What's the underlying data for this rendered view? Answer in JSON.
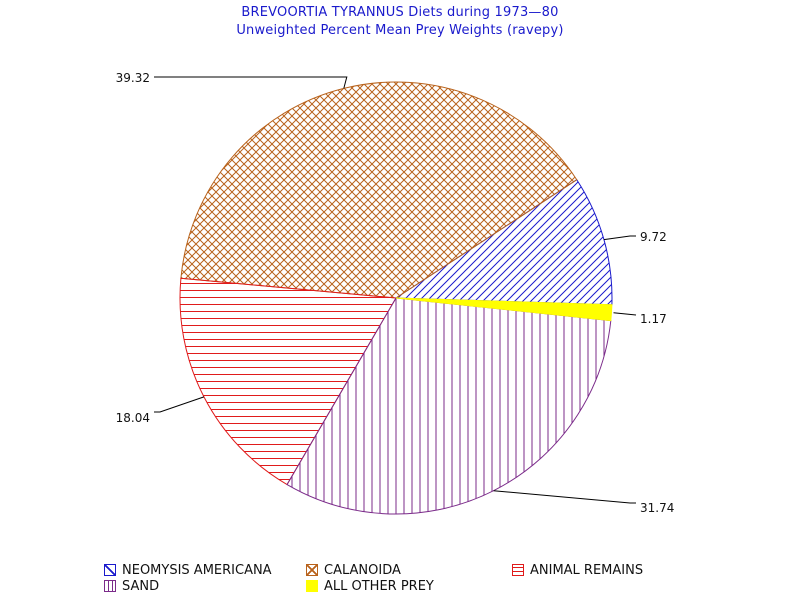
{
  "chart_data": {
    "type": "pie",
    "title": "BREVOORTIA TYRANNUS Diets during 1973—80",
    "subtitle": "Unweighted Percent Mean Prey Weights (ravepy)",
    "series": [
      {
        "name": "NEOMYSIS AMERICANA",
        "value": 9.72,
        "label": "9.72",
        "color": "#1a1acc",
        "pattern": "diag-up"
      },
      {
        "name": "CALANOIDA",
        "value": 39.32,
        "label": "39.32",
        "color": "#b8621b",
        "pattern": "crosshatch"
      },
      {
        "name": "ANIMAL REMAINS",
        "value": 18.04,
        "label": "18.04",
        "color": "#e01b1b",
        "pattern": "horizontal"
      },
      {
        "name": "SAND",
        "value": 31.74,
        "label": "31.74",
        "color": "#7b2b8a",
        "pattern": "vertical"
      },
      {
        "name": "ALL OTHER PREY",
        "value": 1.17,
        "label": "1.17",
        "color": "#ffff00",
        "pattern": "solid"
      }
    ],
    "legend_placement": "bottom"
  }
}
